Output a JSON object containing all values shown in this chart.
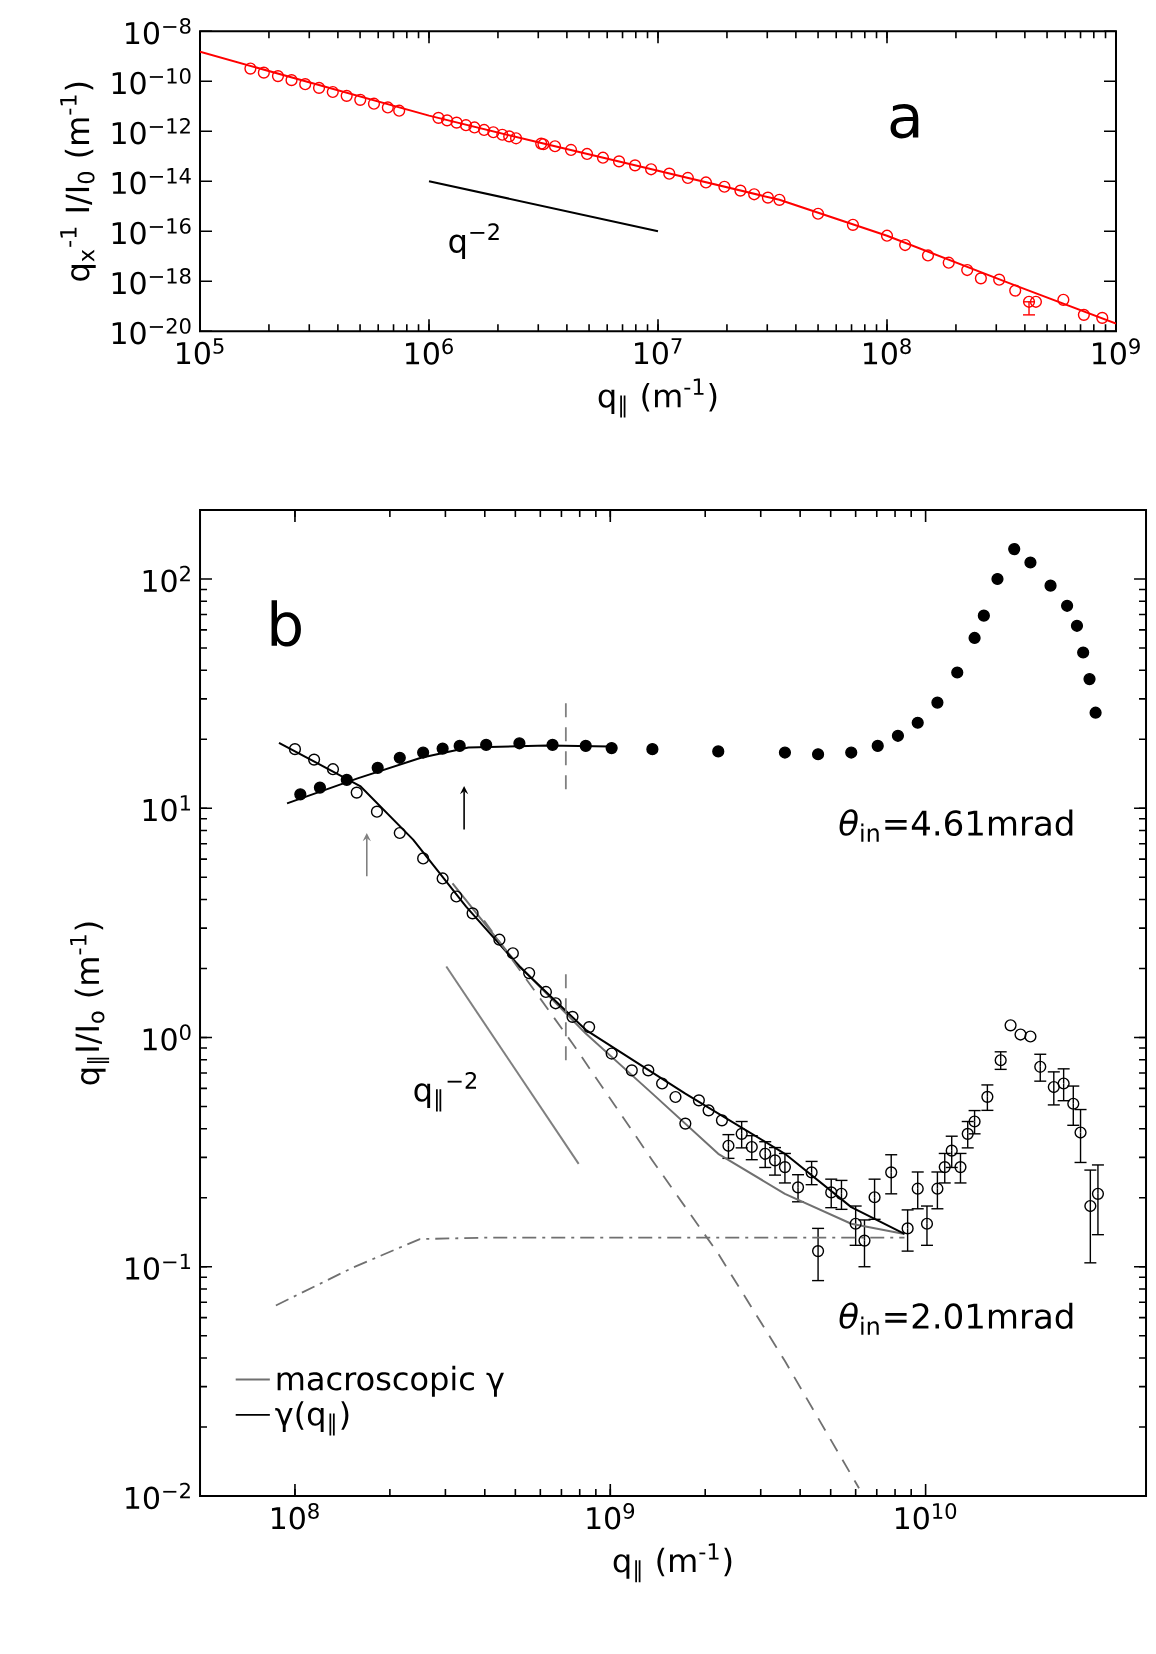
{
  "chart_data": [
    {
      "type": "scatter",
      "xlabel": "q$_{∥}$  (m$^{-1}$)",
      "ylabel": "q$_{x}$$^{-1}$ I/I$_{0}$ (m$^{-1}$)",
      "log": "xy",
      "xlim": [
        100000.0,
        1000000000.0
      ],
      "ylim": [
        1e-20,
        1e-08
      ],
      "xticks": [
        {
          "value": 100000.0,
          "label": "10$^{5}$"
        },
        {
          "value": 1000000.0,
          "label": "10$^{6}$"
        },
        {
          "value": 10000000.0,
          "label": "10$^{7}$"
        },
        {
          "value": 100000000.0,
          "label": "10$^{8}$"
        },
        {
          "value": 1000000000.0,
          "label": "10$^{9}$"
        }
      ],
      "yticks": [
        {
          "value": 1e-20,
          "label": "10$^{−20}$"
        },
        {
          "value": 1e-18,
          "label": "10$^{−18}$"
        },
        {
          "value": 1e-16,
          "label": "10$^{−16}$"
        },
        {
          "value": 1e-14,
          "label": "10$^{−14}$"
        },
        {
          "value": 1e-12,
          "label": "10$^{−12}$"
        },
        {
          "value": 1e-10,
          "label": "10$^{−10}$"
        },
        {
          "value": 1e-08,
          "label": "10$^{−8}$"
        }
      ],
      "annotations": [
        "a",
        "q$^{−2}$"
      ],
      "series": [
        {
          "type": "scatter",
          "marker": "circle",
          "color": "#ff0000",
          "x": [
            166000.0,
            190000.0,
            219000.0,
            251000.0,
            288000.0,
            331000.0,
            380000.0,
            437000.0,
            501000.0,
            575000.0,
            661000.0,
            741000.0,
            1100000.0,
            1200000.0,
            1320000.0,
            1450000.0,
            1580000.0,
            1740000.0,
            1910000.0,
            2090000.0,
            2240000.0,
            2400000.0,
            3090000.0,
            3160000.0,
            3550000.0,
            4170000.0,
            4900000.0,
            5750000.0,
            6760000.0,
            7940000.0,
            9330000.0,
            11200000.0,
            13500000.0,
            16200000.0,
            19500000.0,
            22900000.0,
            26300000.0,
            30200000.0,
            33900000.0,
            50000000.0,
            71000000.0,
            100000000.0,
            120000000.0,
            151000000.0,
            186000000.0,
            224000000.0,
            257000000.0,
            309000000.0,
            363000000.0,
            417000000.0,
            447000000.0,
            589000000.0,
            724000000.0,
            871000000.0
          ],
          "values": [
            3.2e-10,
            2.2e-10,
            1.6e-10,
            1.1e-10,
            7.6e-11,
            5.4e-11,
            3.7e-11,
            2.6e-11,
            1.8e-11,
            1.26e-11,
            8.9e-12,
            6.6e-12,
            3.4e-12,
            2.7e-12,
            2.2e-12,
            1.74e-12,
            1.41e-12,
            1.12e-12,
            9.1e-13,
            7.2e-13,
            6.2e-13,
            5.2e-13,
            3.2e-13,
            3e-13,
            2.5e-13,
            1.78e-13,
            1.23e-13,
            8.7e-14,
            6.2e-14,
            4.3e-14,
            3e-14,
            2e-14,
            1.35e-14,
            8.9e-15,
            6e-15,
            4.2e-15,
            3e-15,
            2.2e-15,
            1.8e-15,
            5e-16,
            1.8e-16,
            6.6e-17,
            2.8e-17,
            1.07e-17,
            5.5e-18,
            2.8e-18,
            1.3e-18,
            1.15e-18,
            4.2e-19,
            1.5e-19,
            1.5e-19,
            1.8e-19,
            4.5e-20,
            3.4e-20
          ],
          "errors": [
            null,
            null,
            null,
            null,
            null,
            null,
            null,
            null,
            null,
            null,
            null,
            null,
            null,
            null,
            null,
            null,
            null,
            null,
            null,
            null,
            null,
            null,
            null,
            null,
            null,
            null,
            null,
            null,
            null,
            null,
            null,
            null,
            null,
            null,
            null,
            null,
            null,
            null,
            null,
            null,
            null,
            null,
            null,
            null,
            null,
            null,
            null,
            null,
            null,
            [
              4.5e-20,
              1.5e-19
            ],
            null,
            null,
            null,
            null
          ]
        },
        {
          "type": "line",
          "line_style": "solid",
          "color": "#ff0000",
          "x": [
            100000.0,
            316000.0,
            1000000.0,
            3160000.0,
            10000000.0,
            33900000.0,
            100000000.0,
            316000000.0,
            1000000000.0
          ],
          "values": [
            1.5e-09,
            7.9e-11,
            4.2e-12,
            3.2e-13,
            2.6e-14,
            1.8e-15,
            6.6e-17,
            1.1e-18,
            2e-20
          ]
        },
        {
          "type": "line",
          "line_style": "solid",
          "color": "#000000",
          "x": [
            1000000.0,
            10000000.0
          ],
          "values": [
            1e-14,
            1e-16
          ]
        }
      ]
    },
    {
      "type": "scatter",
      "xlabel": "q$_{∥}$  (m$^{-1}$)",
      "ylabel": "q$_{∥}$I/I$_{o}$  (m$^{-1}$)",
      "log": "xy",
      "xlim": [
        50000000.0,
        50000000000.0
      ],
      "ylim": [
        0.01,
        200
      ],
      "legend": "bottom left",
      "xticks": [
        {
          "value": 100000000.0,
          "label": "10$^{8}$"
        },
        {
          "value": 1000000000.0,
          "label": "10$^{9}$"
        },
        {
          "value": 10000000000.0,
          "label": "10$^{10}$"
        }
      ],
      "yticks": [
        {
          "value": 0.01,
          "label": "10$^{−2}$"
        },
        {
          "value": 0.1,
          "label": "10$^{−1}$"
        },
        {
          "value": 1,
          "label": "10$^{0}$"
        },
        {
          "value": 10,
          "label": "10$^{1}$"
        },
        {
          "value": 100,
          "label": "10$^{2}$"
        }
      ],
      "annotations": [
        "b",
        "*θ*$_{in}$=4.61mrad",
        "*θ*$_{in}$=2.01mrad",
        "q$_{∥}$$^{−2}$"
      ],
      "series": [
        {
          "type": "scatter",
          "marker": "circle",
          "color": "#000000",
          "x": [
            104000000.0,
            120000000.0,
            146000000.0,
            183000000.0,
            215000000.0,
            255000000.0,
            294000000.0,
            333000000.0,
            404000000.0,
            515000000.0,
            656000000.0,
            836000000.0,
            1010000000.0,
            1360000000.0,
            2200000000.0,
            3580000000.0,
            4560000000.0,
            5810000000.0,
            7050000000.0,
            8170000000.0,
            9440000000.0,
            10900000000.0,
            12600000000.0,
            14300000000.0,
            15300000000.0,
            16900000000.0,
            19100000000.0,
            21500000000.0,
            24900000000.0,
            28100000000.0,
            30200000000.0,
            31600000000.0,
            33100000000.0,
            34600000000.0
          ],
          "values": [
            11.5,
            12.3,
            13.3,
            15.0,
            16.6,
            17.5,
            18.2,
            18.7,
            18.9,
            19.2,
            18.9,
            18.7,
            18.3,
            18.1,
            17.7,
            17.5,
            17.2,
            17.5,
            18.7,
            20.7,
            23.6,
            28.9,
            39.1,
            55.3,
            69.2,
            100,
            135,
            118,
            93.5,
            76.4,
            62.5,
            47.8,
            36.6,
            26.1
          ]
        },
        {
          "type": "line",
          "line_style": "solid",
          "color": "#000000",
          "x": [
            94400000.0,
            158000000.0,
            251000000.0,
            355000000.0,
            631000000.0,
            1000000000.0
          ],
          "values": [
            10.5,
            13.5,
            16.6,
            18.4,
            18.8,
            18.6
          ]
        },
        {
          "type": "scatter",
          "marker": "circle",
          "color": "#000000",
          "x": [
            100000000.0,
            115000000.0,
            132000000.0,
            157000000.0,
            182000000.0,
            215000000.0,
            255000000.0,
            294000000.0,
            325000000.0,
            366000000.0,
            445000000.0,
            491000000.0,
            553000000.0,
            625000000.0,
            671000000.0,
            759000000.0,
            857000000.0,
            1010000000.0,
            1170000000.0,
            1320000000.0,
            1460000000.0,
            1610000000.0,
            1730000000.0,
            1910000000.0,
            2050000000.0,
            2260000000.0,
            2370000000.0,
            2610000000.0,
            2810000000.0,
            3100000000.0,
            3330000000.0,
            3580000000.0,
            3940000000.0,
            4350000000.0,
            4560000000.0,
            5020000000.0,
            5410000000.0,
            6000000000.0,
            6400000000.0,
            6890000000.0,
            7780000000.0,
            8770000000.0,
            9440000000.0,
            10100000000.0,
            10900000000.0,
            11500000000.0,
            12100000000.0,
            12900000000.0,
            13600000000.0,
            14300000000.0,
            15700000000.0,
            17300000000.0,
            18600000000.0,
            20000000000.0,
            21500000000.0,
            23100000000.0,
            25500000000.0,
            27400000000.0,
            29400000000.0,
            31000000000.0,
            33300000000.0,
            35200000000.0
          ],
          "values": [
            18.1,
            16.3,
            14.8,
            11.7,
            9.66,
            7.8,
            6.04,
            4.94,
            4.12,
            3.48,
            2.67,
            2.33,
            1.91,
            1.58,
            1.41,
            1.23,
            1.11,
            0.851,
            0.719,
            0.719,
            0.63,
            0.55,
            0.421,
            0.532,
            0.481,
            0.435,
            0.337,
            0.38,
            0.333,
            0.311,
            0.291,
            0.272,
            0.222,
            0.258,
            0.117,
            0.211,
            0.208,
            0.154,
            0.13,
            0.201,
            0.258,
            0.147,
            0.219,
            0.154,
            0.219,
            0.272,
            0.321,
            0.272,
            0.38,
            0.43,
            0.551,
            0.796,
            1.13,
            1.03,
            1.01,
            0.745,
            0.608,
            0.63,
            0.514,
            0.385,
            0.184,
            0.208
          ],
          "errors": [
            null,
            null,
            null,
            null,
            null,
            null,
            null,
            null,
            null,
            null,
            null,
            null,
            null,
            null,
            null,
            null,
            null,
            null,
            null,
            null,
            null,
            null,
            null,
            null,
            null,
            null,
            0.04,
            0.05,
            0.04,
            0.04,
            0.04,
            0.04,
            0.03,
            0.03,
            0.03,
            0.03,
            0.03,
            0.03,
            0.03,
            0.04,
            0.05,
            0.03,
            0.04,
            0.03,
            0.04,
            0.04,
            0.05,
            0.04,
            0.05,
            0.05,
            0.07,
            0.07,
            null,
            null,
            null,
            0.1,
            0.1,
            0.1,
            0.1,
            0.1,
            0.08,
            0.07
          ]
        },
        {
          "type": "line",
          "name": "macroscopic γ",
          "line_style": "solid",
          "color": "#707070",
          "x": [
            316000000.0,
            500000000.0,
            836000000.0,
            1360000000.0,
            2200000000.0,
            3580000000.0,
            5810000000.0,
            8570000000.0
          ],
          "values": [
            4.7,
            2.14,
            1.04,
            0.569,
            0.311,
            0.208,
            0.154,
            0.139
          ]
        },
        {
          "type": "line",
          "name": "γ(q$_{∥}$)",
          "line_style": "solid",
          "color": "#000000",
          "x": [
            89000000.0,
            161000000.0,
            237000000.0,
            349000000.0,
            515000000.0,
            836000000.0,
            1730000000.0,
            3580000000.0,
            5810000000.0,
            8570000000.0
          ],
          "values": [
            19.3,
            12.5,
            7.3,
            3.72,
            2.04,
            1.08,
            0.569,
            0.311,
            0.182,
            0.139
          ]
        },
        {
          "type": "line",
          "line_style": "dashed",
          "color": "#707070",
          "x": [
            398000000.0,
            759000000.0,
            1360000000.0,
            2200000000.0,
            3580000000.0,
            6150000000.0
          ],
          "values": [
            3.24,
            0.942,
            0.291,
            0.114,
            0.0388,
            0.0108
          ]
        },
        {
          "type": "line",
          "line_style": "dash dot",
          "color": "#707070",
          "x": [
            87000000.0,
            153000000.0,
            249000000.0,
            404000000.0,
            8570000000.0
          ],
          "values": [
            0.0678,
            0.0993,
            0.132,
            0.134,
            0.134
          ]
        },
        {
          "type": "line",
          "line_style": "solid",
          "color": "#808080",
          "x": [
            302000000.0,
            794000000.0
          ],
          "values": [
            2.04,
            0.281
          ]
        },
        {
          "type": "line",
          "line_style": "dashed",
          "color": "#808080",
          "x": [
            723000000.0,
            723000000.0
          ],
          "values": [
            12.1,
            28.9
          ]
        },
        {
          "type": "line",
          "line_style": "dashed",
          "color": "#808080",
          "x": [
            723000000.0,
            723000000.0
          ],
          "values": [
            0.796,
            1.91
          ]
        }
      ]
    }
  ]
}
